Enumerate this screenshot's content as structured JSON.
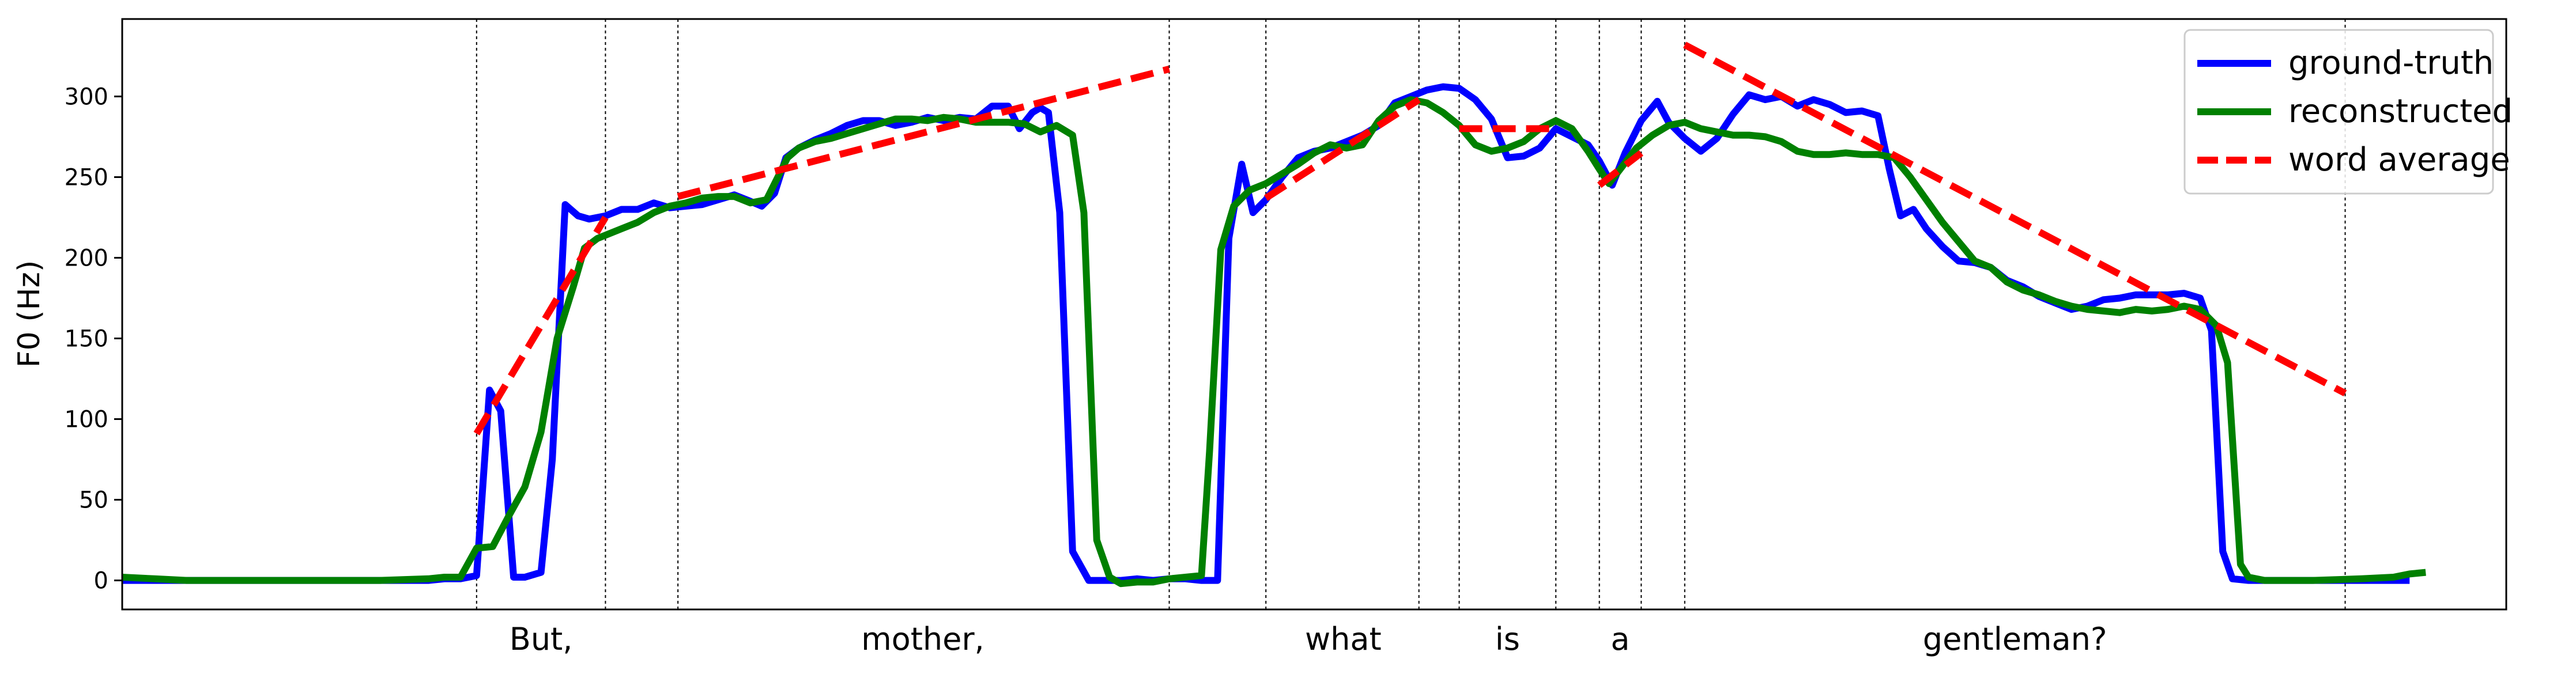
{
  "chart_data": {
    "type": "line",
    "title": "",
    "xlabel": "",
    "ylabel": "F0 (Hz)",
    "ylim": [
      -18,
      348
    ],
    "xlim": [
      0,
      148
    ],
    "yticks": [
      0,
      50,
      100,
      150,
      200,
      250,
      300
    ],
    "grid": false,
    "legend": {
      "position": "top-right",
      "entries": [
        "ground-truth",
        "reconstructed",
        "word average"
      ]
    },
    "word_boundaries": [
      22,
      30,
      34.5,
      65,
      71,
      80.5,
      83,
      89,
      91.7,
      94.3,
      97,
      138
    ],
    "word_labels": [
      {
        "text": "But,",
        "x": 26
      },
      {
        "text": "mother,",
        "x": 49.7
      },
      {
        "text": "what",
        "x": 75.8
      },
      {
        "text": "is",
        "x": 86
      },
      {
        "text": "a",
        "x": 93
      },
      {
        "text": "gentleman?",
        "x": 117.5
      }
    ],
    "series": [
      {
        "name": "ground-truth",
        "color": "#0000ff",
        "style": "solid",
        "points": [
          [
            0,
            0
          ],
          [
            2,
            0
          ],
          [
            4,
            0
          ],
          [
            8,
            0
          ],
          [
            12,
            0
          ],
          [
            16,
            0
          ],
          [
            19,
            0
          ],
          [
            20,
            1
          ],
          [
            21,
            1
          ],
          [
            22,
            3
          ],
          [
            22.8,
            118
          ],
          [
            23.5,
            105
          ],
          [
            24.3,
            2
          ],
          [
            25,
            2
          ],
          [
            26,
            5
          ],
          [
            26.7,
            75
          ],
          [
            27.5,
            233
          ],
          [
            28.3,
            226
          ],
          [
            29,
            224
          ],
          [
            30,
            226
          ],
          [
            31,
            230
          ],
          [
            32,
            230
          ],
          [
            33,
            234
          ],
          [
            34,
            231
          ],
          [
            35,
            232
          ],
          [
            36,
            233
          ],
          [
            37,
            236
          ],
          [
            38,
            239
          ],
          [
            39,
            235
          ],
          [
            39.7,
            232
          ],
          [
            40.5,
            240
          ],
          [
            41.2,
            262
          ],
          [
            42,
            268
          ],
          [
            43,
            273
          ],
          [
            44,
            277
          ],
          [
            45,
            282
          ],
          [
            46,
            285
          ],
          [
            47,
            285
          ],
          [
            48,
            282
          ],
          [
            49,
            284
          ],
          [
            50,
            287
          ],
          [
            51,
            285
          ],
          [
            52,
            287
          ],
          [
            53,
            286
          ],
          [
            54,
            294
          ],
          [
            55,
            294
          ],
          [
            55.7,
            280
          ],
          [
            56.5,
            290
          ],
          [
            57,
            293
          ],
          [
            57.5,
            290
          ],
          [
            58.2,
            228
          ],
          [
            59,
            18
          ],
          [
            60,
            0
          ],
          [
            61,
            0
          ],
          [
            62,
            0
          ],
          [
            63,
            1
          ],
          [
            64,
            0
          ],
          [
            65,
            1
          ],
          [
            66,
            1
          ],
          [
            67,
            0
          ],
          [
            68,
            0
          ],
          [
            68.7,
            212
          ],
          [
            69.5,
            258
          ],
          [
            70.2,
            228
          ],
          [
            71,
            236
          ],
          [
            72,
            250
          ],
          [
            73,
            262
          ],
          [
            74,
            266
          ],
          [
            75,
            268
          ],
          [
            76,
            272
          ],
          [
            77,
            276
          ],
          [
            78,
            282
          ],
          [
            79,
            296
          ],
          [
            80,
            300
          ],
          [
            81,
            304
          ],
          [
            82,
            306
          ],
          [
            83,
            305
          ],
          [
            84,
            298
          ],
          [
            85,
            286
          ],
          [
            86,
            262
          ],
          [
            87,
            263
          ],
          [
            88,
            268
          ],
          [
            89,
            280
          ],
          [
            90,
            275
          ],
          [
            91,
            270
          ],
          [
            91.7,
            260
          ],
          [
            92.5,
            245
          ],
          [
            93.3,
            265
          ],
          [
            94.3,
            285
          ],
          [
            95.3,
            297
          ],
          [
            96,
            284
          ],
          [
            97,
            274
          ],
          [
            98,
            266
          ],
          [
            99,
            274
          ],
          [
            100,
            289
          ],
          [
            101,
            301
          ],
          [
            102,
            298
          ],
          [
            103,
            300
          ],
          [
            104,
            294
          ],
          [
            105,
            298
          ],
          [
            106,
            295
          ],
          [
            107,
            290
          ],
          [
            108,
            291
          ],
          [
            109,
            288
          ],
          [
            109.7,
            255
          ],
          [
            110.4,
            226
          ],
          [
            111.2,
            230
          ],
          [
            112,
            218
          ],
          [
            113,
            207
          ],
          [
            114,
            198
          ],
          [
            115,
            197
          ],
          [
            116,
            194
          ],
          [
            117,
            186
          ],
          [
            118,
            182
          ],
          [
            119,
            176
          ],
          [
            120,
            172
          ],
          [
            121,
            168
          ],
          [
            122,
            170
          ],
          [
            123,
            174
          ],
          [
            124,
            175
          ],
          [
            125,
            177
          ],
          [
            126,
            177
          ],
          [
            127,
            177
          ],
          [
            128,
            178
          ],
          [
            129,
            175
          ],
          [
            129.7,
            155
          ],
          [
            130.4,
            18
          ],
          [
            131,
            1
          ],
          [
            132,
            0
          ],
          [
            134,
            0
          ],
          [
            137,
            0
          ],
          [
            140,
            0
          ],
          [
            142,
            0
          ]
        ]
      },
      {
        "name": "reconstructed",
        "color": "#008000",
        "style": "solid",
        "points": [
          [
            0,
            2
          ],
          [
            2,
            1
          ],
          [
            4,
            0
          ],
          [
            8,
            0
          ],
          [
            12,
            0
          ],
          [
            16,
            0
          ],
          [
            19,
            1
          ],
          [
            20,
            2
          ],
          [
            21,
            2
          ],
          [
            22,
            20
          ],
          [
            23,
            21
          ],
          [
            24,
            40
          ],
          [
            25,
            58
          ],
          [
            26,
            92
          ],
          [
            27,
            150
          ],
          [
            28,
            182
          ],
          [
            28.7,
            206
          ],
          [
            29.5,
            212
          ],
          [
            30,
            214
          ],
          [
            31,
            218
          ],
          [
            32,
            222
          ],
          [
            33,
            228
          ],
          [
            34,
            232
          ],
          [
            35,
            234
          ],
          [
            36,
            237
          ],
          [
            37,
            238
          ],
          [
            38,
            238
          ],
          [
            39,
            234
          ],
          [
            40,
            236
          ],
          [
            40.7,
            250
          ],
          [
            41.3,
            262
          ],
          [
            42,
            268
          ],
          [
            43,
            272
          ],
          [
            44,
            274
          ],
          [
            45,
            277
          ],
          [
            46,
            280
          ],
          [
            47,
            283
          ],
          [
            48,
            286
          ],
          [
            49,
            286
          ],
          [
            50,
            285
          ],
          [
            51,
            287
          ],
          [
            52,
            286
          ],
          [
            53,
            284
          ],
          [
            54,
            284
          ],
          [
            55,
            284
          ],
          [
            56,
            283
          ],
          [
            57,
            278
          ],
          [
            58,
            282
          ],
          [
            59,
            276
          ],
          [
            59.7,
            228
          ],
          [
            60.5,
            25
          ],
          [
            61.3,
            2
          ],
          [
            62,
            -2
          ],
          [
            63,
            -1
          ],
          [
            64,
            -1
          ],
          [
            65,
            1
          ],
          [
            66,
            2
          ],
          [
            67,
            3
          ],
          [
            67.5,
            80
          ],
          [
            68.2,
            205
          ],
          [
            69,
            232
          ],
          [
            70,
            242
          ],
          [
            71,
            246
          ],
          [
            72,
            252
          ],
          [
            73,
            258
          ],
          [
            74,
            265
          ],
          [
            75,
            270
          ],
          [
            76,
            268
          ],
          [
            77,
            270
          ],
          [
            78,
            285
          ],
          [
            79,
            294
          ],
          [
            80,
            298
          ],
          [
            81,
            296
          ],
          [
            82,
            290
          ],
          [
            83,
            282
          ],
          [
            84,
            270
          ],
          [
            85,
            266
          ],
          [
            86,
            268
          ],
          [
            87,
            272
          ],
          [
            88,
            280
          ],
          [
            89,
            285
          ],
          [
            90,
            280
          ],
          [
            91,
            266
          ],
          [
            91.7,
            255
          ],
          [
            92.3,
            246
          ],
          [
            93,
            255
          ],
          [
            94,
            268
          ],
          [
            95,
            276
          ],
          [
            96,
            282
          ],
          [
            97,
            284
          ],
          [
            98,
            280
          ],
          [
            99,
            278
          ],
          [
            100,
            276
          ],
          [
            101,
            276
          ],
          [
            102,
            275
          ],
          [
            103,
            272
          ],
          [
            104,
            266
          ],
          [
            105,
            264
          ],
          [
            106,
            264
          ],
          [
            107,
            265
          ],
          [
            108,
            264
          ],
          [
            109,
            264
          ],
          [
            110,
            262
          ],
          [
            111,
            250
          ],
          [
            112,
            236
          ],
          [
            113,
            222
          ],
          [
            114,
            210
          ],
          [
            115,
            198
          ],
          [
            116,
            194
          ],
          [
            117,
            185
          ],
          [
            118,
            180
          ],
          [
            119,
            177
          ],
          [
            120,
            173
          ],
          [
            121,
            170
          ],
          [
            122,
            168
          ],
          [
            123,
            167
          ],
          [
            124,
            166
          ],
          [
            125,
            168
          ],
          [
            126,
            167
          ],
          [
            127,
            168
          ],
          [
            128,
            170
          ],
          [
            129,
            168
          ],
          [
            130,
            158
          ],
          [
            130.7,
            135
          ],
          [
            131.5,
            10
          ],
          [
            132,
            2
          ],
          [
            133,
            0
          ],
          [
            136,
            0
          ],
          [
            139,
            1
          ],
          [
            141,
            2
          ],
          [
            142,
            4
          ],
          [
            143,
            5
          ]
        ]
      },
      {
        "name": "word average",
        "color": "#ff0000",
        "style": "dashed",
        "segments": [
          [
            [
              22,
              91
            ],
            [
              30,
              225
            ]
          ],
          [
            [
              34.5,
              238
            ],
            [
              65,
              317
            ]
          ],
          [
            [
              71,
              237
            ],
            [
              80.5,
              298
            ]
          ],
          [
            [
              83,
              280
            ],
            [
              89,
              280
            ]
          ],
          [
            [
              91.7,
              245
            ],
            [
              94.3,
              265
            ]
          ],
          [
            [
              97,
              332
            ],
            [
              138,
              116
            ]
          ]
        ]
      }
    ]
  }
}
